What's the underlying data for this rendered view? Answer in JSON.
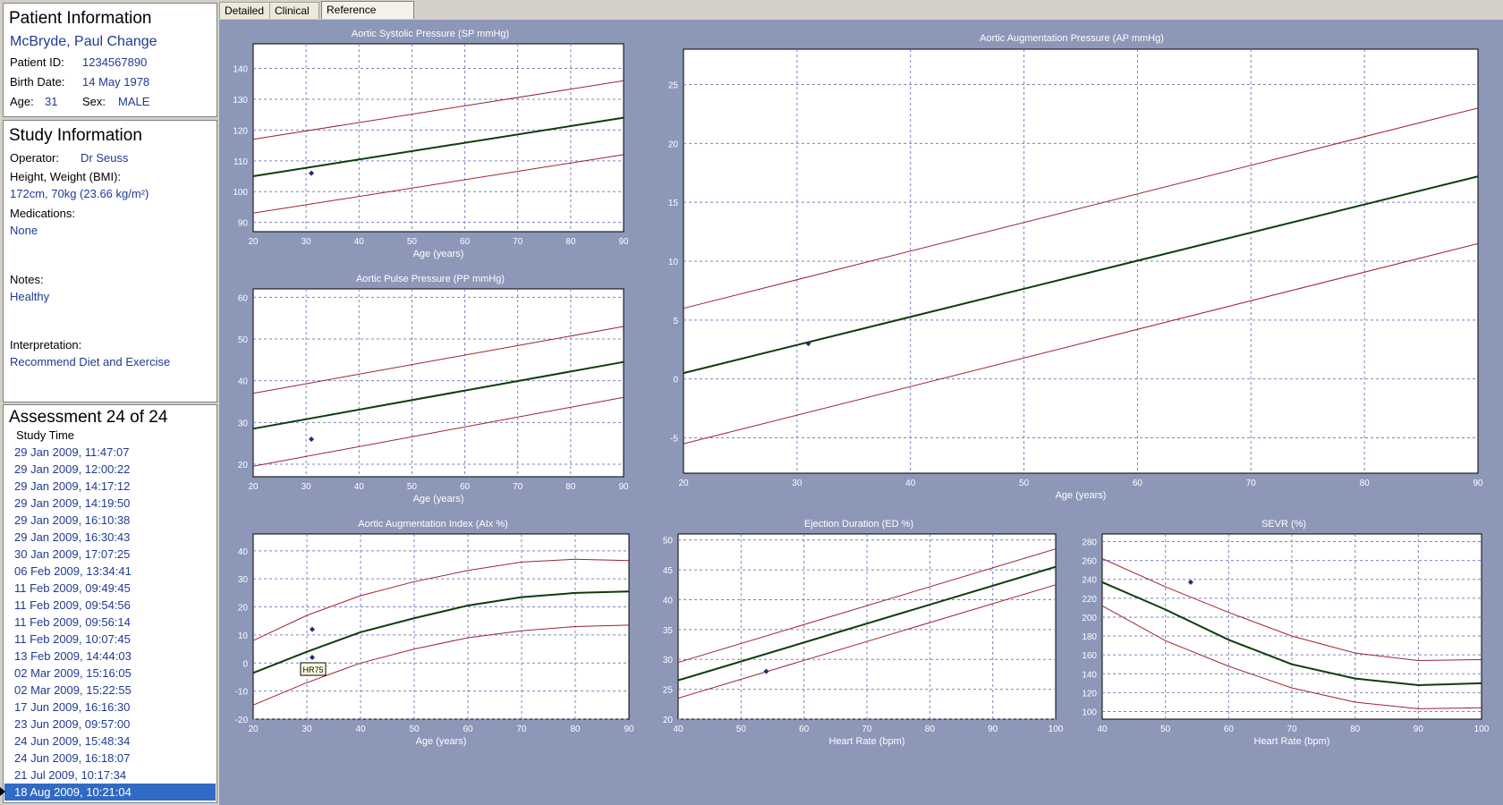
{
  "patient": {
    "heading": "Patient Information",
    "name": "McBryde, Paul Change",
    "id_label": "Patient ID:",
    "id_value": "1234567890",
    "birth_label": "Birth Date:",
    "birth_value": "14 May 1978",
    "age_label": "Age:",
    "age_value": "31",
    "sex_label": "Sex:",
    "sex_value": "MALE"
  },
  "study": {
    "heading": "Study Information",
    "operator_label": "Operator:",
    "operator_value": "Dr Seuss",
    "hw_label": "Height, Weight (BMI):",
    "hw_value": "172cm, 70kg (23.66 kg/m²)",
    "meds_label": "Medications:",
    "meds_value": "None",
    "notes_label": "Notes:",
    "notes_value": "Healthy",
    "interp_label": "Interpretation:",
    "interp_value": "Recommend Diet and Exercise"
  },
  "assessment": {
    "heading": "Assessment 24 of 24",
    "column_header": "Study Time",
    "times": [
      "29 Jan 2009, 11:47:07",
      "29 Jan 2009, 12:00:22",
      "29 Jan 2009, 14:17:12",
      "29 Jan 2009, 14:19:50",
      "29 Jan 2009, 16:10:38",
      "29 Jan 2009, 16:30:43",
      "30 Jan 2009, 17:07:25",
      "06 Feb 2009, 13:34:41",
      "11 Feb 2009, 09:49:45",
      "11 Feb 2009, 09:54:56",
      "11 Feb 2009, 09:56:14",
      "11 Feb 2009, 10:07:45",
      "13 Feb 2009, 14:44:03",
      "02 Mar 2009, 15:16:05",
      "02 Mar 2009, 15:22:55",
      "17 Jun 2009, 16:16:30",
      "23 Jun 2009, 09:57:00",
      "24 Jun 2009, 15:48:34",
      "24 Jun 2009, 16:18:07",
      "21 Jul 2009, 10:17:34",
      "18 Aug 2009, 10:21:04"
    ],
    "selected_index": 20
  },
  "tabs": [
    {
      "label": "Detailed",
      "active": false
    },
    {
      "label": "Clinical",
      "active": false
    },
    {
      "label": "Reference Range",
      "active": true
    }
  ],
  "colors": {
    "frame": "#8d97b8",
    "mean_line": "#0b3d0b",
    "range_line": "#9b2335",
    "grid": "#8080c0",
    "point": "#2a2a6a",
    "text_blue": "#1f3a93"
  },
  "chart_data": [
    {
      "type": "line",
      "title": "Aortic Systolic Pressure (SP mmHg)",
      "xlabel": "Age (years)",
      "ylabel": "",
      "xlim": [
        20,
        90
      ],
      "ylim": [
        87,
        148
      ],
      "xticks": [
        20,
        30,
        40,
        50,
        60,
        70,
        80,
        90
      ],
      "yticks": [
        90,
        100,
        110,
        120,
        130,
        140
      ],
      "series": [
        {
          "role": "upper",
          "x": [
            20,
            90
          ],
          "y": [
            117,
            136
          ]
        },
        {
          "role": "mean",
          "x": [
            20,
            90
          ],
          "y": [
            105,
            124
          ]
        },
        {
          "role": "lower",
          "x": [
            20,
            90
          ],
          "y": [
            93,
            112
          ]
        }
      ],
      "points": [
        {
          "x": 31,
          "y": 106
        }
      ]
    },
    {
      "type": "line",
      "title": "Aortic Pulse Pressure (PP mmHg)",
      "xlabel": "Age (years)",
      "ylabel": "",
      "xlim": [
        20,
        90
      ],
      "ylim": [
        17,
        62
      ],
      "xticks": [
        20,
        30,
        40,
        50,
        60,
        70,
        80,
        90
      ],
      "yticks": [
        20,
        30,
        40,
        50,
        60
      ],
      "series": [
        {
          "role": "upper",
          "x": [
            20,
            90
          ],
          "y": [
            37,
            53
          ]
        },
        {
          "role": "mean",
          "x": [
            20,
            90
          ],
          "y": [
            28.5,
            44.5
          ]
        },
        {
          "role": "lower",
          "x": [
            20,
            90
          ],
          "y": [
            19.5,
            36
          ]
        }
      ],
      "points": [
        {
          "x": 31,
          "y": 26
        }
      ]
    },
    {
      "type": "line",
      "title": "Aortic Augmentation Pressure (AP mmHg)",
      "xlabel": "Age (years)",
      "ylabel": "",
      "xlim": [
        20,
        90
      ],
      "ylim": [
        -8,
        28
      ],
      "xticks": [
        20,
        30,
        40,
        50,
        60,
        70,
        80,
        90
      ],
      "yticks": [
        -5,
        0,
        5,
        10,
        15,
        20,
        25
      ],
      "series": [
        {
          "role": "upper",
          "x": [
            20,
            90
          ],
          "y": [
            6,
            23
          ]
        },
        {
          "role": "mean",
          "x": [
            20,
            90
          ],
          "y": [
            0.5,
            17.2
          ]
        },
        {
          "role": "lower",
          "x": [
            20,
            90
          ],
          "y": [
            -5.5,
            11.5
          ]
        }
      ],
      "points": [
        {
          "x": 31,
          "y": 3
        }
      ]
    },
    {
      "type": "line",
      "title": "Aortic Augmentation Index (AIx %)",
      "xlabel": "Age (years)",
      "ylabel": "",
      "xlim": [
        20,
        90
      ],
      "ylim": [
        -20,
        46
      ],
      "xticks": [
        20,
        30,
        40,
        50,
        60,
        70,
        80,
        90
      ],
      "yticks": [
        -20,
        -10,
        0,
        10,
        20,
        30,
        40
      ],
      "series": [
        {
          "role": "upper",
          "x": [
            20,
            30,
            40,
            50,
            60,
            70,
            80,
            90
          ],
          "y": [
            8,
            17,
            24,
            29,
            33,
            36,
            37,
            36.5
          ]
        },
        {
          "role": "mean",
          "x": [
            20,
            30,
            40,
            50,
            60,
            70,
            80,
            90
          ],
          "y": [
            -3.5,
            4,
            11,
            16,
            20.5,
            23.5,
            25,
            25.5
          ]
        },
        {
          "role": "lower",
          "x": [
            20,
            30,
            40,
            50,
            60,
            70,
            80,
            90
          ],
          "y": [
            -15,
            -7,
            0,
            5,
            9,
            11.5,
            13,
            13.5
          ]
        }
      ],
      "points": [
        {
          "x": 31,
          "y": 12
        },
        {
          "x": 31,
          "y": 2
        }
      ],
      "annotation": {
        "text": "HR75",
        "x": 31,
        "y": 2
      }
    },
    {
      "type": "line",
      "title": "Ejection Duration (ED %)",
      "xlabel": "Heart Rate (bpm)",
      "ylabel": "",
      "xlim": [
        40,
        100
      ],
      "ylim": [
        20,
        51
      ],
      "xticks": [
        40,
        50,
        60,
        70,
        80,
        90,
        100
      ],
      "yticks": [
        20,
        25,
        30,
        35,
        40,
        45,
        50
      ],
      "series": [
        {
          "role": "upper",
          "x": [
            40,
            100
          ],
          "y": [
            29.5,
            48.5
          ]
        },
        {
          "role": "mean",
          "x": [
            40,
            100
          ],
          "y": [
            26.5,
            45.5
          ]
        },
        {
          "role": "lower",
          "x": [
            40,
            100
          ],
          "y": [
            23.5,
            42.5
          ]
        }
      ],
      "points": [
        {
          "x": 54,
          "y": 28
        }
      ]
    },
    {
      "type": "line",
      "title": "SEVR (%)",
      "xlabel": "Heart Rate (bpm)",
      "ylabel": "",
      "xlim": [
        40,
        100
      ],
      "ylim": [
        92,
        288
      ],
      "xticks": [
        40,
        50,
        60,
        70,
        80,
        90,
        100
      ],
      "yticks": [
        100,
        120,
        140,
        160,
        180,
        200,
        220,
        240,
        260,
        280
      ],
      "series": [
        {
          "role": "upper",
          "x": [
            40,
            50,
            60,
            70,
            80,
            90,
            100
          ],
          "y": [
            262,
            232,
            205,
            180,
            162,
            154,
            155
          ]
        },
        {
          "role": "mean",
          "x": [
            40,
            50,
            60,
            70,
            80,
            90,
            100
          ],
          "y": [
            237,
            208,
            176,
            150,
            135,
            128,
            130
          ]
        },
        {
          "role": "lower",
          "x": [
            40,
            50,
            60,
            70,
            80,
            90,
            100
          ],
          "y": [
            212,
            175,
            148,
            125,
            110,
            103,
            104
          ]
        }
      ],
      "points": [
        {
          "x": 54,
          "y": 237
        }
      ]
    }
  ]
}
